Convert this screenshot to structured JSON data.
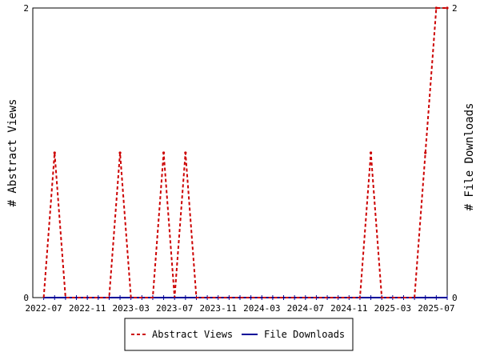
{
  "chart_data": {
    "type": "line",
    "y_left_label": "# Abstract Views",
    "y_right_label": "# File Downloads",
    "ylim": [
      0,
      2
    ],
    "y_ticks": [
      "0",
      "2"
    ],
    "x_range": [
      "2022-06",
      "2025-08"
    ],
    "x_tick_labels": [
      "2022-07",
      "2022-11",
      "2023-03",
      "2023-07",
      "2023-11",
      "2024-03",
      "2024-07",
      "2024-11",
      "2025-03",
      "2025-07"
    ],
    "grid": false,
    "legend_placement": "bottom",
    "series": [
      {
        "name": "Abstract Views",
        "color": "#cc0000",
        "dash": "dashed",
        "x": [
          "2022-07",
          "2022-08",
          "2022-09",
          "2022-10",
          "2022-11",
          "2022-12",
          "2023-01",
          "2023-02",
          "2023-03",
          "2023-04",
          "2023-05",
          "2023-06",
          "2023-07",
          "2023-08",
          "2023-09",
          "2023-10",
          "2023-11",
          "2023-12",
          "2024-01",
          "2024-02",
          "2024-03",
          "2024-04",
          "2024-05",
          "2024-06",
          "2024-07",
          "2024-08",
          "2024-09",
          "2024-10",
          "2024-11",
          "2024-12",
          "2025-01",
          "2025-02",
          "2025-03",
          "2025-04",
          "2025-05",
          "2025-06",
          "2025-07",
          "2025-08"
        ],
        "values": [
          0,
          1,
          0,
          0,
          0,
          0,
          0,
          1,
          0,
          0,
          0,
          1,
          0,
          1,
          0,
          0,
          0,
          0,
          0,
          0,
          0,
          0,
          0,
          0,
          0,
          0,
          0,
          0,
          0,
          0,
          1,
          0,
          0,
          0,
          0,
          1,
          2,
          2
        ]
      },
      {
        "name": "File Downloads",
        "color": "#000099",
        "dash": "solid",
        "x": [
          "2022-07",
          "2025-08"
        ],
        "values": [
          0,
          0
        ]
      }
    ]
  }
}
